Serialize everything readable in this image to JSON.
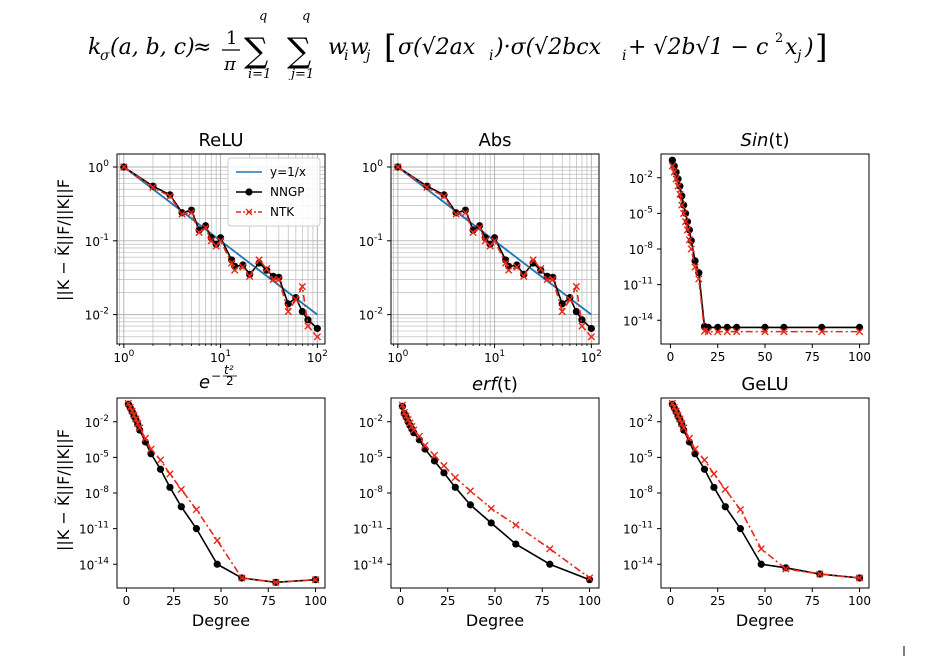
{
  "formula": {
    "lhs": "k",
    "lhs_sub": "σ",
    "args": "(a, b, c)",
    "approx": "≈",
    "frac_num": "1",
    "frac_den": "π",
    "sum_top": "q",
    "sum1_bot": "i=1",
    "sum2_bot": "j=1",
    "weights": "w",
    "w1_sub": "i",
    "w2_sub": "j",
    "bracket_open": "[",
    "term1": "σ(√2ax",
    "term1_sub": "i",
    "dot": ")·σ(√2bcx",
    "term2_sub": "i",
    "plus": " + √2b√1 − c",
    "sq": "2",
    "x": "x",
    "x_sub": "j",
    "close": ")",
    "bracket_close": "]"
  },
  "colors": {
    "baseline": "#1f77b4",
    "nngp": "#000000",
    "ntk": "#e8281a",
    "grid": "#b0b0b0"
  },
  "legend": {
    "entries": [
      {
        "label": "y=1/x",
        "style": "line",
        "color": "#1f77b4"
      },
      {
        "label": "NNGP",
        "style": "line-circle",
        "color": "#000000"
      },
      {
        "label": "NTK",
        "style": "dashdot-x",
        "color": "#e8281a"
      }
    ],
    "placement": "upper-right of ReLU panel"
  },
  "ylabel": "||K − K̃||F/||K||F",
  "chart_data": [
    {
      "type": "line",
      "title": "ReLU",
      "xscale": "log",
      "yscale": "log",
      "xlim": [
        0.85,
        120
      ],
      "ylim": [
        0.004,
        1.5
      ],
      "grid": "both-major-minor",
      "xticks": [
        {
          "v": 1,
          "b": "10",
          "e": "0"
        },
        {
          "v": 10,
          "b": "10",
          "e": "1"
        },
        {
          "v": 100,
          "b": "10",
          "e": "2"
        }
      ],
      "yticks": [
        {
          "v": 0.01,
          "b": "10",
          "e": "-2"
        },
        {
          "v": 0.1,
          "b": "10",
          "e": "-1"
        },
        {
          "v": 1,
          "b": "10",
          "e": "0"
        }
      ],
      "series": [
        {
          "name": "y=1/x",
          "style": "baseline",
          "x": [
            1,
            100
          ],
          "y": [
            1,
            0.01
          ]
        },
        {
          "name": "NNGP",
          "style": "nngp",
          "x": [
            1,
            2,
            3,
            4,
            5,
            6,
            7,
            8,
            9,
            10,
            13,
            14,
            17,
            20,
            25,
            30,
            35,
            40,
            50,
            60,
            70,
            80,
            100
          ],
          "y": [
            1,
            0.55,
            0.42,
            0.24,
            0.26,
            0.14,
            0.16,
            0.11,
            0.09,
            0.11,
            0.055,
            0.045,
            0.047,
            0.035,
            0.05,
            0.04,
            0.033,
            0.032,
            0.014,
            0.017,
            0.011,
            0.0085,
            0.0065
          ]
        },
        {
          "name": "NTK",
          "style": "ntk",
          "x": [
            1,
            2,
            3,
            4,
            5,
            6,
            7,
            8,
            9,
            10,
            13,
            14,
            17,
            20,
            25,
            30,
            35,
            40,
            50,
            60,
            70,
            80,
            100
          ],
          "y": [
            1,
            0.53,
            0.4,
            0.23,
            0.24,
            0.13,
            0.15,
            0.1,
            0.085,
            0.1,
            0.05,
            0.04,
            0.044,
            0.033,
            0.055,
            0.042,
            0.03,
            0.03,
            0.011,
            0.016,
            0.024,
            0.007,
            0.005
          ]
        }
      ]
    },
    {
      "type": "line",
      "title": "Abs",
      "xscale": "log",
      "yscale": "log",
      "xlim": [
        0.85,
        120
      ],
      "ylim": [
        0.004,
        1.5
      ],
      "grid": "both-major-minor",
      "xticks": [
        {
          "v": 1,
          "b": "10",
          "e": "0"
        },
        {
          "v": 10,
          "b": "10",
          "e": "1"
        },
        {
          "v": 100,
          "b": "10",
          "e": "2"
        }
      ],
      "yticks": [
        {
          "v": 0.01,
          "b": "10",
          "e": "-2"
        },
        {
          "v": 0.1,
          "b": "10",
          "e": "-1"
        },
        {
          "v": 1,
          "b": "10",
          "e": "0"
        }
      ],
      "series": [
        {
          "name": "y=1/x",
          "style": "baseline",
          "x": [
            1,
            100
          ],
          "y": [
            1,
            0.01
          ]
        },
        {
          "name": "NNGP",
          "style": "nngp",
          "x": [
            1,
            2,
            3,
            4,
            5,
            6,
            7,
            8,
            9,
            10,
            13,
            14,
            17,
            20,
            25,
            30,
            35,
            40,
            50,
            60,
            70,
            80,
            100
          ],
          "y": [
            1,
            0.55,
            0.42,
            0.24,
            0.26,
            0.14,
            0.16,
            0.11,
            0.09,
            0.11,
            0.055,
            0.045,
            0.047,
            0.035,
            0.05,
            0.04,
            0.033,
            0.032,
            0.014,
            0.017,
            0.011,
            0.0085,
            0.0065
          ]
        },
        {
          "name": "NTK",
          "style": "ntk",
          "x": [
            1,
            2,
            3,
            4,
            5,
            6,
            7,
            8,
            9,
            10,
            13,
            14,
            17,
            20,
            25,
            30,
            35,
            40,
            50,
            60,
            70,
            80,
            100
          ],
          "y": [
            1,
            0.53,
            0.4,
            0.23,
            0.24,
            0.13,
            0.15,
            0.1,
            0.085,
            0.1,
            0.05,
            0.04,
            0.044,
            0.033,
            0.055,
            0.042,
            0.03,
            0.03,
            0.011,
            0.016,
            0.024,
            0.007,
            0.005
          ]
        }
      ]
    },
    {
      "type": "line",
      "title": "Sin(t)",
      "title_italic": "Sin",
      "title_rest": "(t)",
      "xscale": "linear",
      "yscale": "log",
      "xlim": [
        -5,
        105
      ],
      "ylim": [
        1e-16,
        1
      ],
      "grid": "none",
      "xticks": [
        {
          "v": 0,
          "t": "0"
        },
        {
          "v": 25,
          "t": "25"
        },
        {
          "v": 50,
          "t": "50"
        },
        {
          "v": 75,
          "t": "75"
        },
        {
          "v": 100,
          "t": "100"
        }
      ],
      "yticks": [
        {
          "v": 1e-14,
          "b": "10",
          "e": "-14"
        },
        {
          "v": 1e-11,
          "b": "10",
          "e": "-11"
        },
        {
          "v": 1e-08,
          "b": "10",
          "e": "-8"
        },
        {
          "v": 1e-05,
          "b": "10",
          "e": "-5"
        },
        {
          "v": 0.01,
          "b": "10",
          "e": "-2"
        }
      ],
      "series": [
        {
          "name": "NNGP",
          "style": "nngp",
          "x": [
            1,
            2,
            3,
            4,
            5,
            6,
            7,
            8,
            9,
            10,
            11,
            13,
            15,
            18,
            20,
            25,
            30,
            35,
            50,
            60,
            80,
            100
          ],
          "y": [
            0.3,
            0.1,
            0.03,
            0.008,
            0.002,
            0.0003,
            5e-05,
            1e-05,
            2e-06,
            4e-07,
            5e-08,
            1e-09,
            1e-10,
            3e-15,
            2.5e-15,
            2.5e-15,
            2.5e-15,
            2.5e-15,
            2.5e-15,
            2.5e-15,
            2.5e-15,
            2.5e-15
          ]
        },
        {
          "name": "NTK",
          "style": "ntk",
          "x": [
            1,
            2,
            3,
            4,
            5,
            6,
            7,
            8,
            9,
            10,
            11,
            13,
            15,
            18,
            20,
            25,
            30,
            35,
            50,
            60,
            80,
            100
          ],
          "y": [
            0.1,
            0.03,
            0.008,
            0.002,
            0.0004,
            5e-05,
            1e-05,
            2e-06,
            4e-07,
            6e-08,
            1e-08,
            3e-10,
            3e-11,
            1.2e-15,
            1.1e-15,
            1.1e-15,
            1.1e-15,
            1.1e-15,
            1.1e-15,
            1.1e-15,
            1.1e-15,
            1.1e-15
          ]
        }
      ]
    },
    {
      "type": "line",
      "title": "e^(-t²/2)",
      "xscale": "linear",
      "yscale": "log",
      "xlim": [
        -5,
        105
      ],
      "ylim": [
        1e-16,
        1
      ],
      "grid": "none",
      "xticks": [
        {
          "v": 0,
          "t": "0"
        },
        {
          "v": 25,
          "t": "25"
        },
        {
          "v": 50,
          "t": "50"
        },
        {
          "v": 75,
          "t": "75"
        },
        {
          "v": 100,
          "t": "100"
        }
      ],
      "yticks": [
        {
          "v": 1e-14,
          "b": "10",
          "e": "-14"
        },
        {
          "v": 1e-11,
          "b": "10",
          "e": "-11"
        },
        {
          "v": 1e-08,
          "b": "10",
          "e": "-8"
        },
        {
          "v": 1e-05,
          "b": "10",
          "e": "-5"
        },
        {
          "v": 0.01,
          "b": "10",
          "e": "-2"
        }
      ],
      "xlabel": "Degree",
      "series": [
        {
          "name": "NNGP",
          "style": "nngp",
          "x": [
            1,
            2,
            3,
            4,
            5,
            6,
            7,
            10,
            13,
            18,
            23,
            29,
            37,
            48,
            61,
            79,
            100
          ],
          "y": [
            0.3,
            0.15,
            0.07,
            0.03,
            0.015,
            0.006,
            0.002,
            0.0002,
            2e-05,
            1e-06,
            3e-08,
            7e-10,
            1e-11,
            1e-14,
            7e-16,
            3e-16,
            5e-16
          ]
        },
        {
          "name": "NTK",
          "style": "ntk",
          "x": [
            1,
            2,
            3,
            4,
            5,
            6,
            7,
            10,
            13,
            18,
            23,
            29,
            37,
            48,
            61,
            79,
            100
          ],
          "y": [
            0.35,
            0.17,
            0.08,
            0.035,
            0.017,
            0.007,
            0.003,
            0.0004,
            5e-05,
            6e-06,
            4e-07,
            2e-08,
            4e-10,
            1e-12,
            7e-16,
            3e-16,
            5e-16
          ]
        }
      ]
    },
    {
      "type": "line",
      "title": "erf(t)",
      "title_italic": "erf",
      "title_rest": "(t)",
      "xscale": "linear",
      "yscale": "log",
      "xlim": [
        -5,
        105
      ],
      "ylim": [
        1e-16,
        1
      ],
      "grid": "none",
      "xticks": [
        {
          "v": 0,
          "t": "0"
        },
        {
          "v": 25,
          "t": "25"
        },
        {
          "v": 50,
          "t": "50"
        },
        {
          "v": 75,
          "t": "75"
        },
        {
          "v": 100,
          "t": "100"
        }
      ],
      "yticks": [
        {
          "v": 1e-14,
          "b": "10",
          "e": "-14"
        },
        {
          "v": 1e-11,
          "b": "10",
          "e": "-11"
        },
        {
          "v": 1e-08,
          "b": "10",
          "e": "-8"
        },
        {
          "v": 1e-05,
          "b": "10",
          "e": "-5"
        },
        {
          "v": 0.01,
          "b": "10",
          "e": "-2"
        }
      ],
      "xlabel": "Degree",
      "series": [
        {
          "name": "NNGP",
          "style": "nngp",
          "x": [
            1,
            2,
            3,
            4,
            5,
            6,
            7,
            10,
            13,
            18,
            23,
            29,
            37,
            48,
            61,
            79,
            100
          ],
          "y": [
            0.2,
            0.05,
            0.025,
            0.01,
            0.005,
            0.0025,
            0.0012,
            0.0003,
            5e-05,
            5e-06,
            5e-07,
            3e-08,
            1e-09,
            3e-11,
            5e-13,
            1e-14,
            5e-16
          ]
        },
        {
          "name": "NTK",
          "style": "ntk",
          "x": [
            1,
            2,
            3,
            4,
            5,
            6,
            7,
            10,
            13,
            18,
            23,
            29,
            37,
            48,
            61,
            79,
            100
          ],
          "y": [
            0.25,
            0.06,
            0.03,
            0.015,
            0.008,
            0.004,
            0.002,
            0.0006,
            0.0001,
            1.5e-05,
            2e-06,
            2e-07,
            1.5e-08,
            5e-10,
            2e-11,
            2e-13,
            7e-16
          ]
        }
      ]
    },
    {
      "type": "line",
      "title": "GeLU",
      "xscale": "linear",
      "yscale": "log",
      "xlim": [
        -5,
        105
      ],
      "ylim": [
        1e-16,
        1
      ],
      "grid": "none",
      "xticks": [
        {
          "v": 0,
          "t": "0"
        },
        {
          "v": 25,
          "t": "25"
        },
        {
          "v": 50,
          "t": "50"
        },
        {
          "v": 75,
          "t": "75"
        },
        {
          "v": 100,
          "t": "100"
        }
      ],
      "yticks": [
        {
          "v": 1e-14,
          "b": "10",
          "e": "-14"
        },
        {
          "v": 1e-11,
          "b": "10",
          "e": "-11"
        },
        {
          "v": 1e-08,
          "b": "10",
          "e": "-8"
        },
        {
          "v": 1e-05,
          "b": "10",
          "e": "-5"
        },
        {
          "v": 0.01,
          "b": "10",
          "e": "-2"
        }
      ],
      "xlabel": "Degree",
      "series": [
        {
          "name": "NNGP",
          "style": "nngp",
          "x": [
            1,
            2,
            3,
            4,
            5,
            6,
            7,
            10,
            13,
            18,
            23,
            29,
            37,
            48,
            61,
            79,
            100
          ],
          "y": [
            0.3,
            0.15,
            0.07,
            0.03,
            0.015,
            0.006,
            0.002,
            0.0002,
            2e-05,
            1e-06,
            3e-08,
            7e-10,
            1e-11,
            1e-14,
            5e-15,
            1.5e-15,
            7e-16
          ]
        },
        {
          "name": "NTK",
          "style": "ntk",
          "x": [
            1,
            2,
            3,
            4,
            5,
            6,
            7,
            10,
            13,
            18,
            23,
            29,
            37,
            48,
            61,
            79,
            100
          ],
          "y": [
            0.35,
            0.17,
            0.08,
            0.035,
            0.017,
            0.007,
            0.003,
            0.0004,
            5e-05,
            6e-06,
            4e-07,
            2e-08,
            4e-10,
            2e-13,
            4e-15,
            1.5e-15,
            7e-16
          ]
        }
      ]
    }
  ]
}
